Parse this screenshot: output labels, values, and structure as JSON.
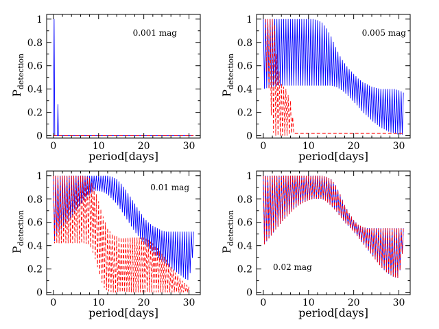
{
  "figure": {
    "xlabel": "period[days]",
    "ylabel_main": "P",
    "ylabel_sub": "detection",
    "x_ticks": [
      "0",
      "10",
      "20",
      "30"
    ],
    "y_ticks": [
      "0",
      "0.2",
      "0.4",
      "0.6",
      "0.8",
      "1"
    ]
  },
  "colors": {
    "series_a": "#0000ff",
    "series_b": "#ff0000",
    "axes": "#000000"
  },
  "chart_data": [
    {
      "type": "line",
      "annotation": "0.001 mag",
      "xlim": [
        -1.5,
        32.5
      ],
      "ylim": [
        -0.02,
        1.04
      ],
      "series": [
        {
          "style": "solid",
          "color": "#0000ff",
          "x": [
            0.0,
            0.15,
            0.3,
            0.45,
            0.6,
            0.9,
            1.0,
            1.1,
            1.2,
            31.0
          ],
          "y": [
            0.0,
            1.0,
            0.0,
            0.0,
            0.0,
            0.0,
            0.27,
            0.0,
            0.0,
            0.0
          ]
        },
        {
          "style": "dashed",
          "color": "#ff0000",
          "x": [
            0.0,
            31.0
          ],
          "y": [
            0.0,
            0.0
          ]
        }
      ]
    },
    {
      "type": "line",
      "annotation": "0.005 mag",
      "xlim": [
        -1.5,
        32.5
      ],
      "ylim": [
        -0.02,
        1.04
      ],
      "series": [
        {
          "style": "solid",
          "color": "#0000ff",
          "x": [
            0,
            1,
            2,
            3,
            4,
            5,
            6,
            7,
            8,
            9,
            10,
            11,
            12,
            13,
            14,
            15,
            16,
            17,
            18,
            19,
            20,
            21,
            22,
            23,
            24,
            25,
            26,
            27,
            28,
            29,
            30,
            31
          ],
          "upper": [
            1.0,
            1.0,
            1.0,
            1.0,
            1.0,
            1.0,
            1.0,
            1.0,
            1.0,
            1.0,
            1.0,
            1.0,
            0.99,
            0.97,
            0.92,
            0.85,
            0.76,
            0.68,
            0.62,
            0.57,
            0.53,
            0.49,
            0.46,
            0.44,
            0.42,
            0.41,
            0.4,
            0.4,
            0.4,
            0.4,
            0.39,
            0.37
          ],
          "lower": [
            0.4,
            0.41,
            0.42,
            0.43,
            0.43,
            0.43,
            0.43,
            0.43,
            0.43,
            0.43,
            0.43,
            0.43,
            0.43,
            0.43,
            0.43,
            0.43,
            0.42,
            0.4,
            0.37,
            0.33,
            0.29,
            0.25,
            0.2,
            0.17,
            0.13,
            0.1,
            0.07,
            0.05,
            0.03,
            0.02,
            0.01,
            0.01
          ]
        },
        {
          "style": "dashed",
          "color": "#ff0000",
          "x": [
            0.5,
            1.0,
            1.5,
            2.0,
            2.5,
            3.0,
            3.5,
            4.0,
            4.5,
            5.0,
            5.5,
            6.0,
            7.0,
            10.0,
            20.0,
            30.0,
            31.0
          ],
          "upper": [
            1.0,
            1.0,
            1.0,
            1.0,
            0.95,
            0.7,
            0.55,
            0.45,
            0.42,
            0.4,
            0.35,
            0.3,
            0.02,
            0.02,
            0.02,
            0.02,
            0.02
          ],
          "lower": [
            0.6,
            0.5,
            0.3,
            0.05,
            0.0,
            0.0,
            0.0,
            0.0,
            0.0,
            0.0,
            0.0,
            0.02,
            0.02,
            0.02,
            0.02,
            0.02,
            0.02
          ]
        }
      ]
    },
    {
      "type": "line",
      "annotation": "0.01 mag",
      "xlim": [
        -1.5,
        32.5
      ],
      "ylim": [
        -0.02,
        1.04
      ],
      "series": [
        {
          "style": "solid",
          "color": "#0000ff",
          "x": [
            0,
            1,
            2,
            3,
            4,
            5,
            6,
            7,
            8,
            9,
            10,
            11,
            12,
            13,
            14,
            15,
            16,
            17,
            18,
            19,
            20,
            21,
            22,
            23,
            24,
            25,
            26,
            27,
            28,
            29,
            30,
            31
          ],
          "upper": [
            1.0,
            1.0,
            1.0,
            1.0,
            1.0,
            1.0,
            1.0,
            1.0,
            1.0,
            1.0,
            1.0,
            1.0,
            1.0,
            0.99,
            0.97,
            0.93,
            0.88,
            0.82,
            0.76,
            0.7,
            0.64,
            0.6,
            0.57,
            0.55,
            0.53,
            0.52,
            0.52,
            0.52,
            0.52,
            0.52,
            0.52,
            0.52
          ],
          "lower": [
            0.42,
            0.5,
            0.55,
            0.6,
            0.65,
            0.7,
            0.75,
            0.8,
            0.84,
            0.87,
            0.87,
            0.86,
            0.84,
            0.8,
            0.76,
            0.7,
            0.64,
            0.58,
            0.52,
            0.47,
            0.42,
            0.38,
            0.34,
            0.3,
            0.27,
            0.24,
            0.21,
            0.18,
            0.15,
            0.12,
            0.1,
            0.36
          ]
        },
        {
          "style": "dashed",
          "color": "#ff0000",
          "x": [
            0,
            1,
            2,
            3,
            4,
            5,
            6,
            7,
            8,
            9,
            10,
            11,
            12,
            13,
            14,
            15,
            16,
            17,
            18,
            19,
            20,
            21,
            22,
            23,
            24,
            25,
            26,
            27,
            28,
            29,
            30
          ],
          "upper": [
            1.0,
            1.0,
            1.0,
            1.0,
            1.0,
            1.0,
            1.0,
            1.0,
            0.98,
            0.9,
            0.78,
            0.65,
            0.55,
            0.5,
            0.48,
            0.47,
            0.47,
            0.47,
            0.47,
            0.47,
            0.47,
            0.45,
            0.42,
            0.38,
            0.33,
            0.28,
            0.22,
            0.17,
            0.12,
            0.08,
            0.05
          ],
          "lower": [
            0.42,
            0.42,
            0.42,
            0.42,
            0.42,
            0.42,
            0.42,
            0.42,
            0.4,
            0.32,
            0.18,
            0.05,
            0.01,
            0.0,
            0.0,
            0.0,
            0.0,
            0.0,
            0.0,
            0.0,
            0.0,
            0.0,
            0.0,
            0.0,
            0.0,
            0.0,
            0.0,
            0.0,
            0.0,
            0.0,
            0.0
          ]
        }
      ]
    },
    {
      "type": "line",
      "annotation": "0.02 mag",
      "xlim": [
        -1.5,
        32.5
      ],
      "ylim": [
        -0.02,
        1.04
      ],
      "series": [
        {
          "style": "solid",
          "color": "#0000ff",
          "x": [
            0,
            1,
            2,
            3,
            4,
            5,
            6,
            7,
            8,
            9,
            10,
            11,
            12,
            13,
            14,
            15,
            16,
            17,
            18,
            19,
            20,
            21,
            22,
            23,
            24,
            25,
            26,
            27,
            28,
            29,
            30,
            31
          ],
          "upper": [
            1.0,
            1.0,
            1.0,
            1.0,
            1.0,
            1.0,
            1.0,
            1.0,
            1.0,
            1.0,
            1.0,
            1.0,
            1.0,
            1.0,
            0.99,
            0.97,
            0.92,
            0.84,
            0.75,
            0.68,
            0.62,
            0.58,
            0.56,
            0.55,
            0.55,
            0.55,
            0.55,
            0.55,
            0.55,
            0.55,
            0.55,
            0.55
          ],
          "lower": [
            0.4,
            0.45,
            0.5,
            0.55,
            0.6,
            0.64,
            0.68,
            0.72,
            0.75,
            0.77,
            0.79,
            0.8,
            0.8,
            0.8,
            0.78,
            0.74,
            0.7,
            0.65,
            0.6,
            0.56,
            0.52,
            0.47,
            0.42,
            0.37,
            0.32,
            0.27,
            0.22,
            0.18,
            0.15,
            0.13,
            0.12,
            0.4
          ]
        },
        {
          "style": "dashed",
          "color": "#ff0000",
          "x": [
            0,
            1,
            2,
            3,
            4,
            5,
            6,
            7,
            8,
            9,
            10,
            11,
            12,
            13,
            14,
            15,
            16,
            17,
            18,
            19,
            20,
            21,
            22,
            23,
            24,
            25,
            26,
            27,
            28,
            29,
            30,
            31
          ],
          "upper": [
            1.0,
            1.0,
            1.0,
            1.0,
            1.0,
            1.0,
            1.0,
            1.0,
            1.0,
            1.0,
            1.0,
            1.0,
            1.0,
            1.0,
            0.99,
            0.97,
            0.92,
            0.84,
            0.75,
            0.68,
            0.62,
            0.58,
            0.56,
            0.55,
            0.55,
            0.55,
            0.55,
            0.55,
            0.55,
            0.55,
            0.55,
            0.55
          ],
          "lower": [
            0.4,
            0.45,
            0.5,
            0.55,
            0.6,
            0.64,
            0.68,
            0.72,
            0.75,
            0.77,
            0.79,
            0.8,
            0.8,
            0.8,
            0.78,
            0.74,
            0.7,
            0.65,
            0.6,
            0.56,
            0.52,
            0.47,
            0.42,
            0.37,
            0.32,
            0.27,
            0.22,
            0.18,
            0.15,
            0.13,
            0.12,
            0.4
          ]
        }
      ]
    }
  ]
}
